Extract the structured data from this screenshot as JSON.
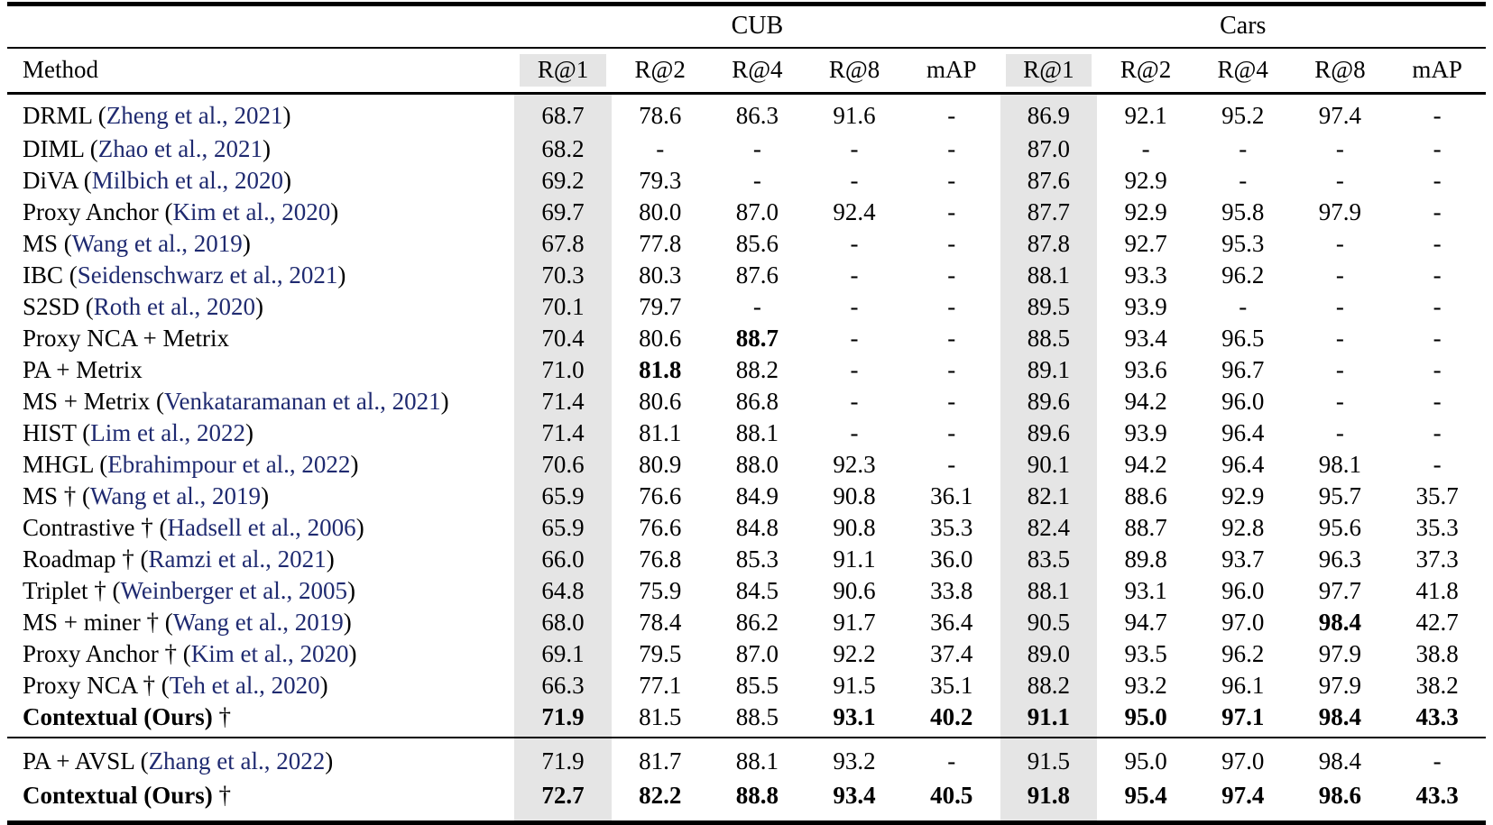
{
  "table": {
    "highlight_color": "#e5e5e5",
    "citation_color": "#1f2a70",
    "method_header": "Method",
    "group_headers": [
      {
        "label": "CUB",
        "span": 5
      },
      {
        "label": "Cars",
        "span": 5
      }
    ],
    "column_headers": [
      "R@1",
      "R@2",
      "R@4",
      "R@8",
      "mAP",
      "R@1",
      "R@2",
      "R@4",
      "R@8",
      "mAP"
    ],
    "highlighted_columns": [
      0,
      5
    ],
    "sections": [
      {
        "rows": [
          {
            "m": "DRML",
            "c": "Zheng et al., 2021",
            "v": [
              "68.7",
              "78.6",
              "86.3",
              "91.6",
              "-",
              "86.9",
              "92.1",
              "95.2",
              "97.4",
              "-"
            ],
            "b": []
          },
          {
            "m": "DIML",
            "c": "Zhao et al., 2021",
            "v": [
              "68.2",
              "-",
              "-",
              "-",
              "-",
              "87.0",
              "-",
              "-",
              "-",
              "-"
            ],
            "b": []
          },
          {
            "m": "DiVA",
            "c": "Milbich et al., 2020",
            "v": [
              "69.2",
              "79.3",
              "-",
              "-",
              "-",
              "87.6",
              "92.9",
              "-",
              "-",
              "-"
            ],
            "b": []
          },
          {
            "m": "Proxy Anchor",
            "c": "Kim et al., 2020",
            "v": [
              "69.7",
              "80.0",
              "87.0",
              "92.4",
              "-",
              "87.7",
              "92.9",
              "95.8",
              "97.9",
              "-"
            ],
            "b": []
          },
          {
            "m": "MS",
            "c": "Wang et al., 2019",
            "v": [
              "67.8",
              "77.8",
              "85.6",
              "-",
              "-",
              "87.8",
              "92.7",
              "95.3",
              "-",
              "-"
            ],
            "b": []
          },
          {
            "m": "IBC",
            "c": "Seidenschwarz et al., 2021",
            "v": [
              "70.3",
              "80.3",
              "87.6",
              "-",
              "-",
              "88.1",
              "93.3",
              "96.2",
              "-",
              "-"
            ],
            "b": []
          },
          {
            "m": "S2SD",
            "c": "Roth et al., 2020",
            "v": [
              "70.1",
              "79.7",
              "-",
              "-",
              "-",
              "89.5",
              "93.9",
              "-",
              "-",
              "-"
            ],
            "b": []
          },
          {
            "m": "Proxy NCA + Metrix",
            "c": null,
            "v": [
              "70.4",
              "80.6",
              "88.7",
              "-",
              "-",
              "88.5",
              "93.4",
              "96.5",
              "-",
              "-"
            ],
            "b": [
              2
            ]
          },
          {
            "m": "PA + Metrix",
            "c": null,
            "v": [
              "71.0",
              "81.8",
              "88.2",
              "-",
              "-",
              "89.1",
              "93.6",
              "96.7",
              "-",
              "-"
            ],
            "b": [
              1
            ]
          },
          {
            "m": "MS + Metrix",
            "c": "Venkataramanan et al., 2021",
            "v": [
              "71.4",
              "80.6",
              "86.8",
              "-",
              "-",
              "89.6",
              "94.2",
              "96.0",
              "-",
              "-"
            ],
            "b": []
          },
          {
            "m": "HIST",
            "c": "Lim et al., 2022",
            "v": [
              "71.4",
              "81.1",
              "88.1",
              "-",
              "-",
              "89.6",
              "93.9",
              "96.4",
              "-",
              "-"
            ],
            "b": []
          },
          {
            "m": "MHGL",
            "c": "Ebrahimpour et al., 2022",
            "v": [
              "70.6",
              "80.9",
              "88.0",
              "92.3",
              "-",
              "90.1",
              "94.2",
              "96.4",
              "98.1",
              "-"
            ],
            "b": []
          },
          {
            "m": "MS †",
            "c": "Wang et al., 2019",
            "v": [
              "65.9",
              "76.6",
              "84.9",
              "90.8",
              "36.1",
              "82.1",
              "88.6",
              "92.9",
              "95.7",
              "35.7"
            ],
            "b": []
          },
          {
            "m": "Contrastive †",
            "c": "Hadsell et al., 2006",
            "v": [
              "65.9",
              "76.6",
              "84.8",
              "90.8",
              "35.3",
              "82.4",
              "88.7",
              "92.8",
              "95.6",
              "35.3"
            ],
            "b": []
          },
          {
            "m": "Roadmap †",
            "c": "Ramzi et al., 2021",
            "v": [
              "66.0",
              "76.8",
              "85.3",
              "91.1",
              "36.0",
              "83.5",
              "89.8",
              "93.7",
              "96.3",
              "37.3"
            ],
            "b": []
          },
          {
            "m": "Triplet †",
            "c": "Weinberger et al., 2005",
            "v": [
              "64.8",
              "75.9",
              "84.5",
              "90.6",
              "33.8",
              "88.1",
              "93.1",
              "96.0",
              "97.7",
              "41.8"
            ],
            "b": []
          },
          {
            "m": "MS + miner †",
            "c": "Wang et al., 2019",
            "v": [
              "68.0",
              "78.4",
              "86.2",
              "91.7",
              "36.4",
              "90.5",
              "94.7",
              "97.0",
              "98.4",
              "42.7"
            ],
            "b": [
              8
            ]
          },
          {
            "m": "Proxy Anchor †",
            "c": "Kim et al., 2020",
            "v": [
              "69.1",
              "79.5",
              "87.0",
              "92.2",
              "37.4",
              "89.0",
              "93.5",
              "96.2",
              "97.9",
              "38.8"
            ],
            "b": []
          },
          {
            "m": "Proxy NCA †",
            "c": "Teh et al., 2020",
            "v": [
              "66.3",
              "77.1",
              "85.5",
              "91.5",
              "35.1",
              "88.2",
              "93.2",
              "96.1",
              "97.9",
              "38.2"
            ],
            "b": []
          },
          {
            "m": "Contextual (Ours)",
            "c": null,
            "suffix": "†",
            "mb": true,
            "v": [
              "71.9",
              "81.5",
              "88.5",
              "93.1",
              "40.2",
              "91.1",
              "95.0",
              "97.1",
              "98.4",
              "43.3"
            ],
            "b": [
              0,
              3,
              4,
              5,
              6,
              7,
              8,
              9
            ]
          }
        ]
      },
      {
        "rows": [
          {
            "m": "PA + AVSL",
            "c": "Zhang et al., 2022",
            "v": [
              "71.9",
              "81.7",
              "88.1",
              "93.2",
              "-",
              "91.5",
              "95.0",
              "97.0",
              "98.4",
              "-"
            ],
            "b": []
          },
          {
            "m": "Contextual (Ours)",
            "c": null,
            "suffix": "†",
            "mb": true,
            "v": [
              "72.7",
              "82.2",
              "88.8",
              "93.4",
              "40.5",
              "91.8",
              "95.4",
              "97.4",
              "98.6",
              "43.3"
            ],
            "b": [
              0,
              1,
              2,
              3,
              4,
              5,
              6,
              7,
              8,
              9
            ]
          }
        ]
      }
    ]
  }
}
